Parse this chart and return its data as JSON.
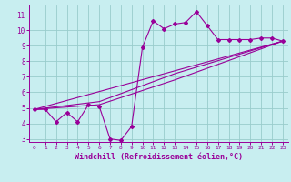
{
  "xlabel": "Windchill (Refroidissement éolien,°C)",
  "bg_color": "#c8eef0",
  "line_color": "#990099",
  "grid_color": "#99cccc",
  "xlim": [
    -0.5,
    23.5
  ],
  "ylim": [
    2.8,
    11.6
  ],
  "xticks": [
    0,
    1,
    2,
    3,
    4,
    5,
    6,
    7,
    8,
    9,
    10,
    11,
    12,
    13,
    14,
    15,
    16,
    17,
    18,
    19,
    20,
    21,
    22,
    23
  ],
  "yticks": [
    3,
    4,
    5,
    6,
    7,
    8,
    9,
    10,
    11
  ],
  "main_series": {
    "x": [
      0,
      1,
      2,
      3,
      4,
      5,
      6,
      7,
      8,
      9,
      10,
      11,
      12,
      13,
      14,
      15,
      16,
      17,
      18,
      19,
      20,
      21,
      22,
      23
    ],
    "y": [
      4.9,
      4.9,
      4.1,
      4.7,
      4.1,
      5.2,
      5.1,
      3.0,
      2.9,
      3.8,
      8.9,
      10.6,
      10.1,
      10.4,
      10.5,
      11.2,
      10.3,
      9.4,
      9.4,
      9.4,
      9.4,
      9.5,
      9.5,
      9.3
    ]
  },
  "smooth_lines": [
    {
      "x": [
        0,
        23
      ],
      "y": [
        4.9,
        9.3
      ]
    },
    {
      "x": [
        0,
        6,
        13,
        23
      ],
      "y": [
        4.9,
        5.4,
        7.2,
        9.3
      ]
    },
    {
      "x": [
        0,
        6,
        13,
        23
      ],
      "y": [
        4.9,
        5.2,
        6.8,
        9.3
      ]
    }
  ]
}
